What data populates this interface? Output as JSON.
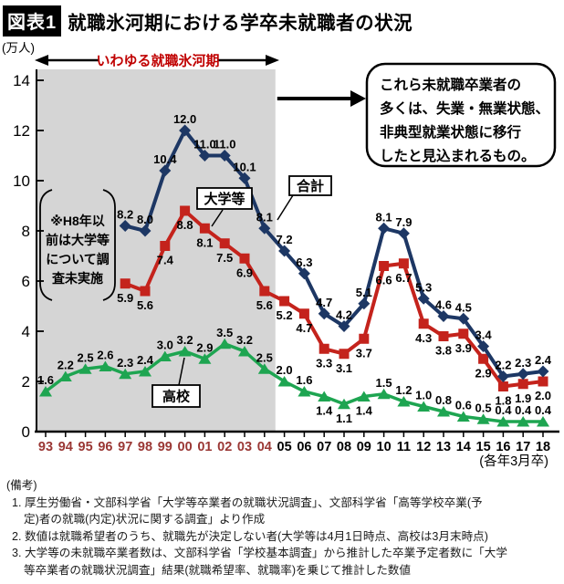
{
  "page_title": {
    "badge": "図表1",
    "title": "就職氷河期における学卒未就職者の状況"
  },
  "chart_data": {
    "type": "line",
    "unit_label": "(万人)",
    "x_axis_note": "(各年3月卒)",
    "ice_age_label": "いわゆる就職氷河期",
    "ice_age_end_category": "04",
    "ylim": [
      0,
      14
    ],
    "y_ticks": [
      0,
      2,
      4,
      6,
      8,
      10,
      12,
      14
    ],
    "categories": [
      "93",
      "94",
      "95",
      "96",
      "97",
      "98",
      "99",
      "00",
      "01",
      "02",
      "03",
      "04",
      "05",
      "06",
      "07",
      "08",
      "09",
      "10",
      "11",
      "12",
      "13",
      "14",
      "15",
      "16",
      "17",
      "18"
    ],
    "x_label_color_ice_age": "#9a3734",
    "x_label_color_normal": "#000000",
    "accent_red": "#c00000",
    "ice_region_color": "#d5d5d5",
    "series": [
      {
        "id": "total",
        "name": "合計",
        "color": "#1d3764",
        "marker": "diamond",
        "start_index": 4,
        "values": [
          8.2,
          8.0,
          10.4,
          12.0,
          11.0,
          11.0,
          10.1,
          8.1,
          7.2,
          6.3,
          4.7,
          4.2,
          5.1,
          8.1,
          7.9,
          5.3,
          4.6,
          4.5,
          3.4,
          2.2,
          2.3,
          2.4
        ]
      },
      {
        "id": "university",
        "name": "大学等",
        "color": "#c4231c",
        "marker": "square",
        "start_index": 4,
        "values": [
          5.9,
          5.6,
          7.4,
          8.8,
          8.1,
          7.5,
          6.9,
          5.6,
          5.2,
          4.7,
          3.3,
          3.1,
          3.7,
          6.6,
          6.7,
          4.3,
          3.8,
          3.9,
          2.9,
          1.8,
          1.9,
          2.0
        ]
      },
      {
        "id": "highschool",
        "name": "高校",
        "color": "#1ea551",
        "marker": "triangle",
        "start_index": 0,
        "values": [
          1.6,
          2.2,
          2.5,
          2.6,
          2.3,
          2.4,
          3.0,
          3.2,
          2.9,
          3.5,
          3.2,
          2.5,
          2.0,
          1.6,
          1.4,
          1.1,
          1.4,
          1.5,
          1.2,
          1.0,
          0.8,
          0.6,
          0.5,
          0.4,
          0.4,
          0.4
        ],
        "label_below_indices": [
          14,
          15,
          16
        ]
      }
    ],
    "survey_note_lines": [
      "※H8年以",
      "前は大学等",
      "について調",
      "査未実施"
    ],
    "annotation_lines": [
      "これら未就職卒業者の",
      "多くは、失業・無業状態、",
      "非典型就業状態に移行",
      "したと見込まれるもの。"
    ]
  },
  "footer": {
    "heading": "(備考)",
    "note_lines": [
      "1. 厚生労働省・文部科学省「大学等卒業者の就職状況調査」、文部科学省「高等学校卒業(予",
      "定)者の就職(内定)状況に関する調査」より作成",
      "2. 数値は就職希望者のうち、就職先が決定しない者(大学等は4月1日時点、高校は3月末時点)",
      "3. 大学等の未就職卒業者数は、文部科学省「学校基本調査」から推計した卒業予定者数に「大学",
      "等卒業者の就職状況調査」結果(就職希望率、就職率)を乗じて推計した数値"
    ]
  }
}
